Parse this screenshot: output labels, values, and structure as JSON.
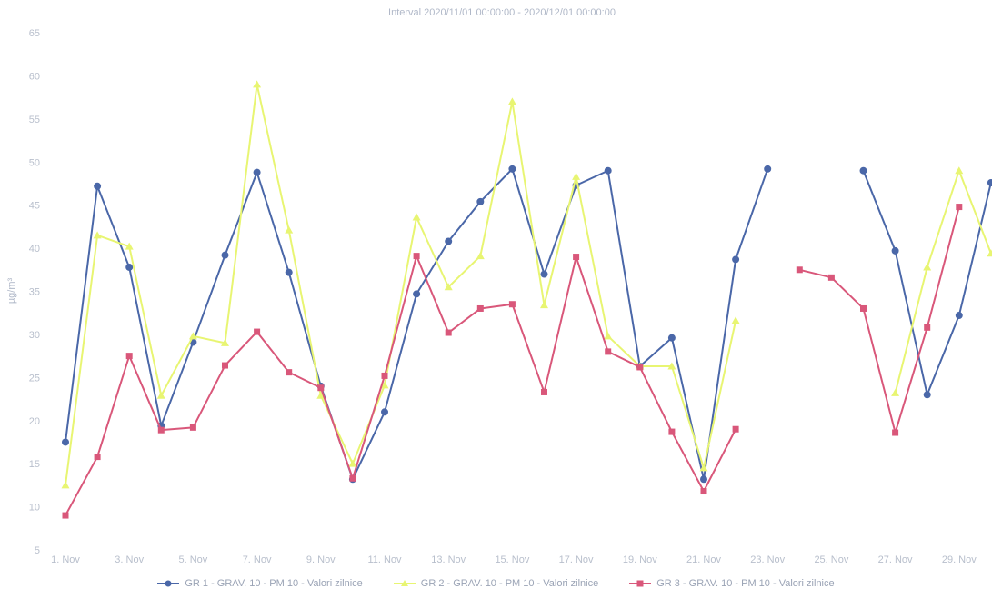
{
  "chart_data": {
    "type": "line",
    "title": "Interval 2020/11/01 00:00:00 - 2020/12/01 00:00:00",
    "ylabel": "µg/m³",
    "xlabel": "",
    "ylim": [
      5,
      65
    ],
    "y_ticks": [
      5,
      10,
      15,
      20,
      25,
      30,
      35,
      40,
      45,
      50,
      55,
      60,
      65
    ],
    "x_days": [
      1,
      2,
      3,
      4,
      5,
      6,
      7,
      8,
      9,
      10,
      11,
      12,
      13,
      14,
      15,
      16,
      17,
      18,
      19,
      20,
      21,
      22,
      23,
      24,
      25,
      26,
      27,
      28,
      29,
      30
    ],
    "x_tick_labels": [
      "1. Nov",
      "3. Nov",
      "5. Nov",
      "7. Nov",
      "9. Nov",
      "11. Nov",
      "13. Nov",
      "15. Nov",
      "17. Nov",
      "19. Nov",
      "21. Nov",
      "23. Nov",
      "25. Nov",
      "27. Nov",
      "29. Nov"
    ],
    "grid": false,
    "legend_position": "bottom",
    "series": [
      {
        "name": "GR 1 - GRAV. 10 - PM 10 - Valori zilnice",
        "color": "#4a67a8",
        "marker": "circle",
        "values": [
          17.5,
          47.2,
          37.8,
          19.4,
          29.1,
          39.2,
          48.8,
          37.2,
          24.0,
          13.2,
          21.0,
          34.7,
          40.8,
          45.4,
          49.2,
          37.0,
          47.3,
          49.0,
          26.3,
          29.6,
          13.2,
          38.7,
          49.2,
          null,
          null,
          49.0,
          39.7,
          23.0,
          32.2,
          47.6
        ]
      },
      {
        "name": "GR 2 - GRAV. 10 - PM 10 - Valori zilnice",
        "color": "#e8f572",
        "marker": "triangle",
        "values": [
          12.5,
          41.5,
          40.2,
          22.9,
          29.8,
          29.0,
          59.0,
          42.1,
          22.9,
          15.0,
          24.1,
          43.6,
          35.5,
          39.1,
          57.0,
          33.4,
          48.3,
          29.8,
          26.3,
          26.3,
          14.5,
          31.6,
          null,
          null,
          null,
          null,
          23.2,
          37.8,
          49.0,
          39.4
        ]
      },
      {
        "name": "GR 3 - GRAV. 10 - PM 10 - Valori zilnice",
        "color": "#d9577a",
        "marker": "square",
        "values": [
          9.0,
          15.8,
          27.5,
          18.9,
          19.2,
          26.4,
          30.3,
          25.6,
          23.8,
          13.3,
          25.2,
          39.1,
          30.2,
          33.0,
          33.5,
          23.3,
          39.0,
          28.0,
          26.2,
          18.7,
          11.8,
          19.0,
          null,
          37.5,
          36.6,
          33.0,
          18.6,
          30.8,
          44.8,
          null
        ]
      }
    ]
  }
}
